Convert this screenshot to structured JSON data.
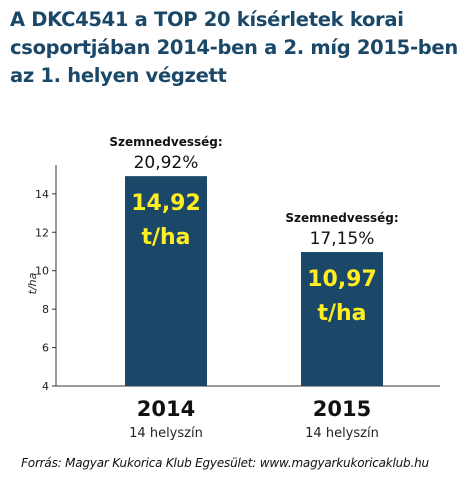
{
  "title_lines": [
    "A DKC4541 a TOP 20 kísérletek  korai",
    "csoportjában 2014-ben a 2. míg 2015-ben",
    "az 1. helyen végzett"
  ],
  "footer": "Forrás: Magyar Kukorica Klub Egyesület: www.magyarkukoricaklub.hu",
  "colors": {
    "bar": "#1b4868",
    "value_label": "#ffee22",
    "title": "#1b4868"
  },
  "chart_data": {
    "type": "bar",
    "categories": [
      "2014",
      "2015"
    ],
    "category_sublabels": [
      "14 helyszín",
      "14 helyszín"
    ],
    "values": [
      14.92,
      10.97
    ],
    "value_labels": [
      [
        "14,92",
        "t/ha"
      ],
      [
        "10,97",
        "t/ha"
      ]
    ],
    "moisture_labels": [
      "Szemnedvesség:",
      "Szemnedvesség:"
    ],
    "moisture_values": [
      "20,92%",
      "17,15%"
    ],
    "ylabel": "t/ha",
    "ylim": [
      4,
      15.5
    ],
    "yticks": [
      4,
      6,
      8,
      10,
      12,
      14
    ],
    "grid": false
  }
}
